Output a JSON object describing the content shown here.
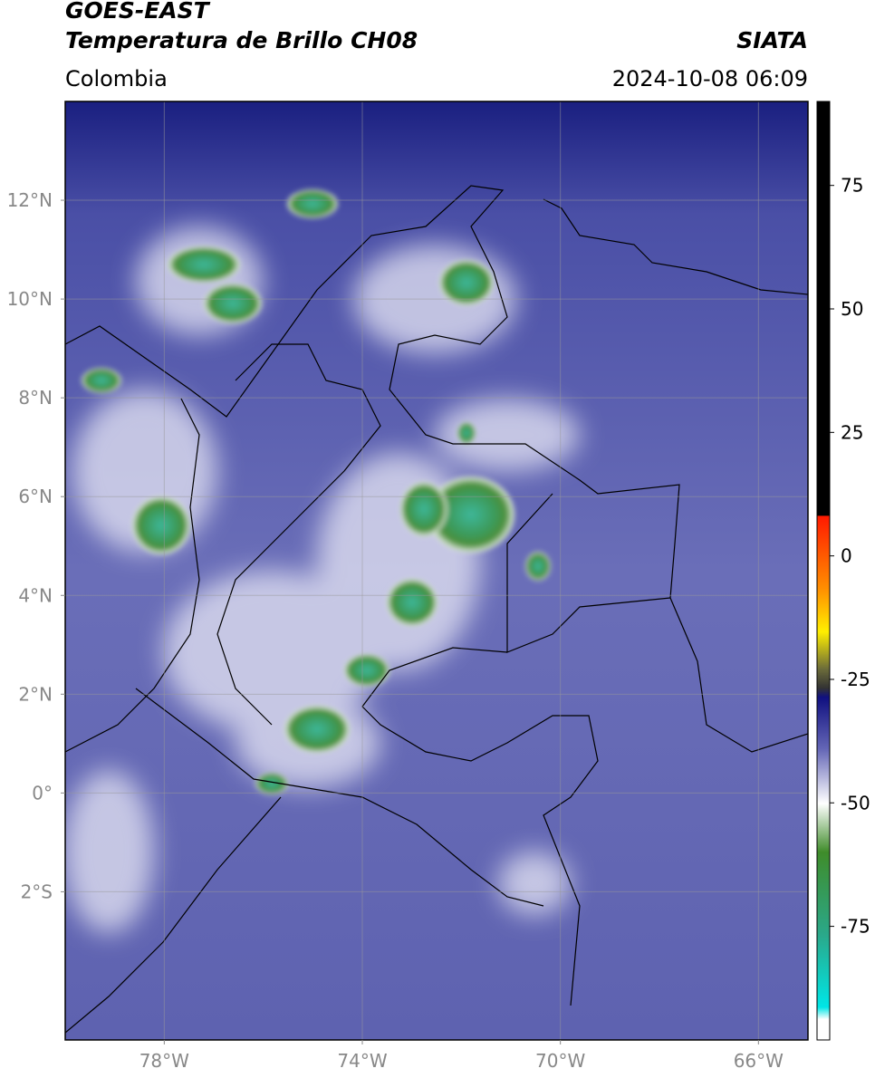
{
  "header": {
    "satellite": "GOES-EAST",
    "product": "Temperatura de Brillo CH08",
    "source": "SIATA",
    "region": "Colombia",
    "datetime": "2024-10-08 06:09"
  },
  "map": {
    "xlim": [
      -80,
      -65
    ],
    "ylim": [
      -5,
      14
    ],
    "xticks": [
      {
        "value": -78,
        "label": "78°W"
      },
      {
        "value": -74,
        "label": "74°W"
      },
      {
        "value": -70,
        "label": "70°W"
      },
      {
        "value": -66,
        "label": "66°W"
      }
    ],
    "yticks": [
      {
        "value": 12,
        "label": "12°N"
      },
      {
        "value": 10,
        "label": "10°N"
      },
      {
        "value": 8,
        "label": "8°N"
      },
      {
        "value": 6,
        "label": "6°N"
      },
      {
        "value": 4,
        "label": "4°N"
      },
      {
        "value": 2,
        "label": "2°N"
      },
      {
        "value": 0,
        "label": "0°"
      },
      {
        "value": -2,
        "label": "2°S"
      }
    ],
    "grid": true
  },
  "colorbar": {
    "lim": [
      -98,
      92
    ],
    "ticks": [
      75,
      50,
      25,
      0,
      -25,
      -50,
      -75
    ]
  }
}
